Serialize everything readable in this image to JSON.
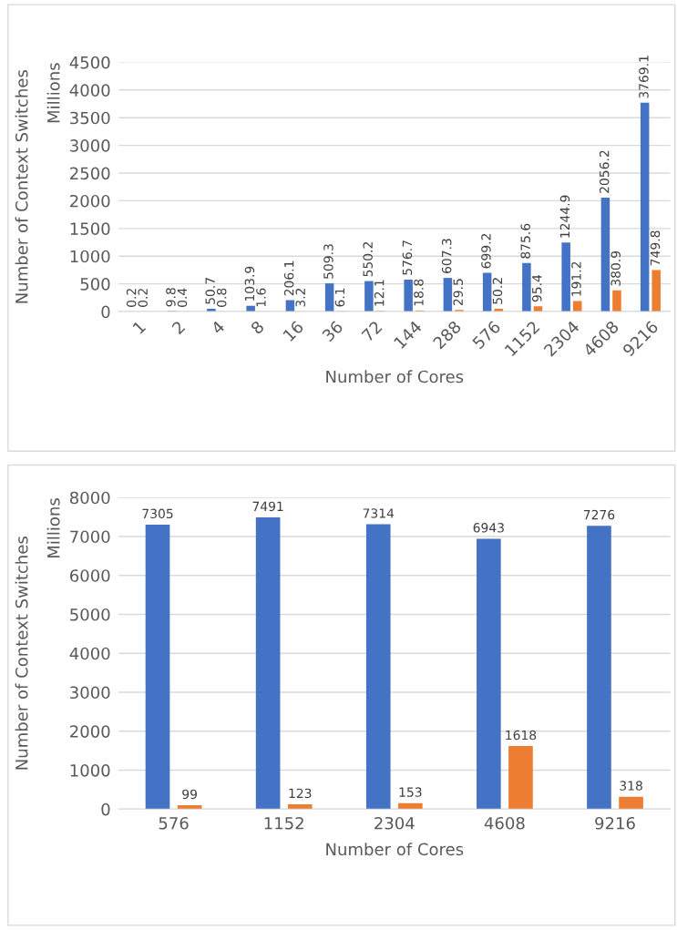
{
  "chart_data": [
    {
      "type": "bar",
      "xlabel": "Number of Cores",
      "ylabel": "Number of Context Switches",
      "annotations": [
        "Millions"
      ],
      "categories": [
        "1",
        "2",
        "4",
        "8",
        "16",
        "36",
        "72",
        "144",
        "288",
        "576",
        "1152",
        "2304",
        "4608",
        "9216"
      ],
      "series": [
        {
          "color": "#4472c4",
          "values": [
            0.2,
            9.8,
            50.7,
            103.9,
            206.1,
            509.3,
            550.2,
            576.7,
            607.3,
            699.2,
            875.6,
            1244.9,
            2056.2,
            3769.1
          ]
        },
        {
          "color": "#ed7d31",
          "values": [
            0.2,
            0.4,
            0.8,
            1.6,
            3.2,
            6.1,
            12.1,
            18.8,
            29.5,
            50.2,
            95.4,
            191.2,
            380.9,
            749.8
          ]
        }
      ],
      "ylim": [
        0,
        4500
      ],
      "yticks": [
        0,
        500,
        1000,
        1500,
        2000,
        2500,
        3000,
        3500,
        4000,
        4500
      ],
      "grid": "y",
      "data_labels": true
    },
    {
      "type": "bar",
      "xlabel": "Number of Cores",
      "ylabel": "Number of Context Switches",
      "annotations": [
        "Millions"
      ],
      "categories": [
        "576",
        "1152",
        "2304",
        "4608",
        "9216"
      ],
      "series": [
        {
          "color": "#4472c4",
          "values": [
            7305,
            7491,
            7314,
            6943,
            7276
          ]
        },
        {
          "color": "#ed7d31",
          "values": [
            99,
            123,
            153,
            1618,
            318
          ]
        }
      ],
      "ylim": [
        0,
        8000
      ],
      "yticks": [
        0,
        1000,
        2000,
        3000,
        4000,
        5000,
        6000,
        7000,
        8000
      ],
      "grid": "y",
      "data_labels": true
    }
  ]
}
